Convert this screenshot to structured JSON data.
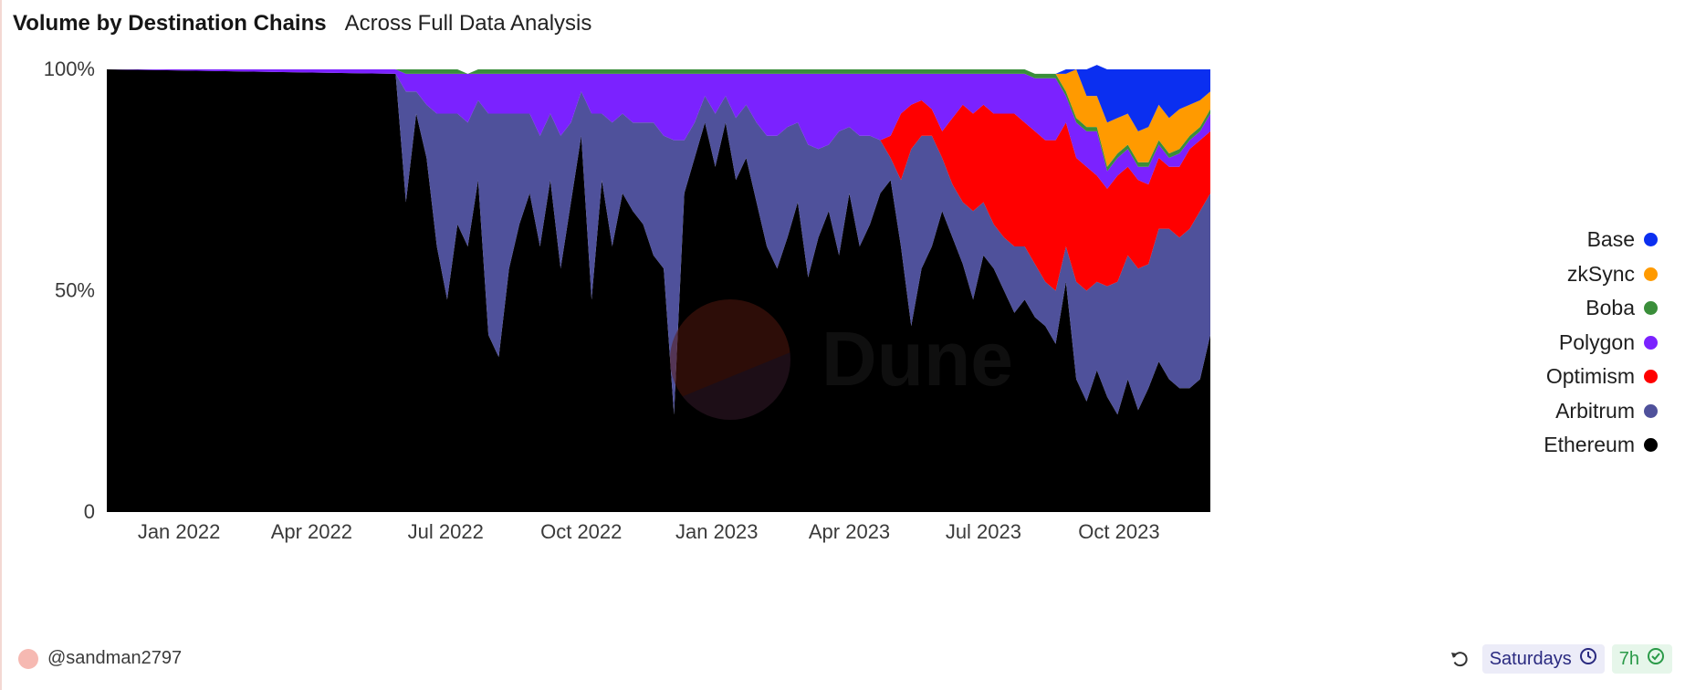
{
  "header": {
    "title": "Volume by Destination Chains",
    "subtitle": "Across Full Data Analysis"
  },
  "chart_data": {
    "type": "area",
    "stacked": true,
    "normalized": true,
    "x_start": "2021-11-13",
    "x_end": "2023-12-02",
    "xticks": [
      "2022-01-01",
      "2022-04-01",
      "2022-07-01",
      "2022-10-01",
      "2023-01-01",
      "2023-04-01",
      "2023-07-01",
      "2023-10-01"
    ],
    "xtick_labels": [
      "Jan 2022",
      "Apr 2022",
      "Jul 2022",
      "Oct 2022",
      "Jan 2023",
      "Apr 2023",
      "Jul 2023",
      "Oct 2023"
    ],
    "yticks": [
      0,
      50,
      100
    ],
    "ytick_labels": [
      "0",
      "50%",
      "100%"
    ],
    "ylim": [
      0,
      100
    ],
    "legend_position": "right",
    "x": [
      "2021-11-13",
      "2022-05-28",
      "2022-06-04",
      "2022-06-11",
      "2022-06-18",
      "2022-06-25",
      "2022-07-02",
      "2022-07-09",
      "2022-07-16",
      "2022-07-23",
      "2022-07-30",
      "2022-08-06",
      "2022-08-13",
      "2022-08-20",
      "2022-08-27",
      "2022-09-03",
      "2022-09-10",
      "2022-09-17",
      "2022-09-24",
      "2022-10-01",
      "2022-10-08",
      "2022-10-15",
      "2022-10-22",
      "2022-10-29",
      "2022-11-05",
      "2022-11-12",
      "2022-11-19",
      "2022-11-26",
      "2022-12-03",
      "2022-12-10",
      "2022-12-17",
      "2022-12-24",
      "2022-12-31",
      "2023-01-07",
      "2023-01-14",
      "2023-01-21",
      "2023-01-28",
      "2023-02-04",
      "2023-02-11",
      "2023-02-18",
      "2023-02-25",
      "2023-03-04",
      "2023-03-11",
      "2023-03-18",
      "2023-03-25",
      "2023-04-01",
      "2023-04-08",
      "2023-04-15",
      "2023-04-22",
      "2023-04-29",
      "2023-05-06",
      "2023-05-13",
      "2023-05-20",
      "2023-05-27",
      "2023-06-03",
      "2023-06-10",
      "2023-06-17",
      "2023-06-24",
      "2023-07-01",
      "2023-07-08",
      "2023-07-15",
      "2023-07-22",
      "2023-07-29",
      "2023-08-05",
      "2023-08-12",
      "2023-08-19",
      "2023-08-26",
      "2023-09-02",
      "2023-09-09",
      "2023-09-16",
      "2023-09-23",
      "2023-09-30",
      "2023-10-07",
      "2023-10-14",
      "2023-10-21",
      "2023-10-28",
      "2023-11-04",
      "2023-11-11",
      "2023-11-18",
      "2023-11-25",
      "2023-12-02"
    ],
    "series": [
      {
        "name": "Ethereum",
        "color": "#000000",
        "values": [
          100,
          99,
          70,
          90,
          80,
          60,
          48,
          65,
          60,
          75,
          40,
          35,
          55,
          65,
          72,
          60,
          75,
          55,
          70,
          85,
          48,
          75,
          60,
          72,
          68,
          65,
          58,
          55,
          22,
          72,
          80,
          88,
          78,
          88,
          75,
          80,
          70,
          60,
          55,
          62,
          70,
          53,
          62,
          68,
          58,
          72,
          60,
          65,
          72,
          75,
          60,
          42,
          55,
          60,
          68,
          62,
          56,
          48,
          58,
          55,
          50,
          45,
          48,
          44,
          42,
          38,
          52,
          30,
          25,
          32,
          26,
          22,
          30,
          23,
          28,
          34,
          30,
          28,
          28,
          30,
          40
        ]
      },
      {
        "name": "Arbitrum",
        "color": "#4f519b",
        "values": [
          0,
          0,
          25,
          5,
          12,
          30,
          42,
          25,
          28,
          18,
          50,
          55,
          35,
          25,
          18,
          25,
          15,
          30,
          18,
          10,
          42,
          15,
          28,
          18,
          20,
          23,
          30,
          30,
          62,
          12,
          8,
          6,
          12,
          6,
          14,
          12,
          18,
          25,
          30,
          25,
          18,
          30,
          20,
          15,
          28,
          15,
          25,
          20,
          12,
          5,
          15,
          40,
          30,
          25,
          12,
          12,
          14,
          20,
          12,
          10,
          12,
          15,
          12,
          12,
          10,
          12,
          8,
          22,
          25,
          20,
          25,
          30,
          28,
          32,
          28,
          30,
          34,
          34,
          36,
          38,
          32
        ]
      },
      {
        "name": "Optimism",
        "color": "#ff0000",
        "values": [
          0,
          0,
          0,
          0,
          0,
          0,
          0,
          0,
          0,
          0,
          0,
          0,
          0,
          0,
          0,
          0,
          0,
          0,
          0,
          0,
          0,
          0,
          0,
          0,
          0,
          0,
          0,
          0,
          0,
          0,
          0,
          0,
          0,
          0,
          0,
          0,
          0,
          0,
          0,
          0,
          0,
          0,
          0,
          0,
          0,
          0,
          0,
          0,
          0,
          5,
          15,
          10,
          8,
          6,
          6,
          15,
          22,
          22,
          22,
          25,
          28,
          30,
          28,
          30,
          32,
          34,
          28,
          28,
          28,
          24,
          22,
          24,
          20,
          20,
          18,
          16,
          14,
          16,
          18,
          16,
          14
        ]
      },
      {
        "name": "Polygon",
        "color": "#7b22ff",
        "values": [
          0,
          1,
          4,
          4,
          7,
          9,
          9,
          9,
          11,
          6,
          9,
          9,
          9,
          9,
          9,
          14,
          9,
          14,
          11,
          4,
          9,
          9,
          11,
          9,
          11,
          11,
          11,
          14,
          15,
          15,
          11,
          5,
          9,
          5,
          10,
          7,
          11,
          14,
          14,
          12,
          11,
          16,
          17,
          16,
          13,
          12,
          14,
          14,
          15,
          14,
          9,
          7,
          6,
          8,
          13,
          10,
          7,
          9,
          7,
          9,
          9,
          9,
          11,
          12,
          14,
          14,
          6,
          8,
          8,
          10,
          4,
          4,
          4,
          3,
          4,
          3,
          2,
          3,
          2,
          2,
          4
        ]
      },
      {
        "name": "Boba",
        "color": "#3a8e3a",
        "values": [
          0,
          0,
          1,
          1,
          1,
          1,
          1,
          1,
          0,
          1,
          1,
          1,
          1,
          1,
          1,
          1,
          1,
          1,
          1,
          1,
          1,
          1,
          1,
          1,
          1,
          1,
          1,
          1,
          1,
          1,
          1,
          1,
          1,
          1,
          1,
          1,
          1,
          1,
          1,
          1,
          1,
          1,
          1,
          1,
          1,
          1,
          1,
          1,
          1,
          1,
          1,
          1,
          1,
          1,
          1,
          1,
          1,
          1,
          1,
          1,
          1,
          1,
          1,
          1,
          1,
          1,
          1,
          1,
          1,
          1,
          1,
          1,
          1,
          1,
          1,
          1,
          1,
          1,
          1,
          1,
          1
        ]
      },
      {
        "name": "zkSync",
        "color": "#ff9a00",
        "values": [
          0,
          0,
          0,
          0,
          0,
          0,
          0,
          0,
          0,
          0,
          0,
          0,
          0,
          0,
          0,
          0,
          0,
          0,
          0,
          0,
          0,
          0,
          0,
          0,
          0,
          0,
          0,
          0,
          0,
          0,
          0,
          0,
          0,
          0,
          0,
          0,
          0,
          0,
          0,
          0,
          0,
          0,
          0,
          0,
          0,
          0,
          0,
          0,
          0,
          0,
          0,
          0,
          0,
          0,
          0,
          0,
          0,
          0,
          0,
          0,
          0,
          0,
          0,
          0,
          0,
          0,
          4,
          11,
          7,
          7,
          10,
          8,
          7,
          7,
          8,
          8,
          8,
          9,
          7,
          6,
          4
        ]
      },
      {
        "name": "Base",
        "color": "#0b2ff0",
        "values": [
          0,
          0,
          0,
          0,
          0,
          0,
          0,
          0,
          0,
          0,
          0,
          0,
          0,
          0,
          0,
          0,
          0,
          0,
          0,
          0,
          0,
          0,
          0,
          0,
          0,
          0,
          0,
          0,
          0,
          0,
          0,
          0,
          0,
          0,
          0,
          0,
          0,
          0,
          0,
          0,
          0,
          0,
          0,
          0,
          0,
          0,
          0,
          0,
          0,
          0,
          0,
          0,
          0,
          0,
          0,
          0,
          0,
          0,
          0,
          0,
          0,
          0,
          0,
          0,
          0,
          0,
          1,
          0,
          6,
          7,
          12,
          11,
          10,
          14,
          13,
          8,
          11,
          9,
          8,
          7,
          5
        ]
      }
    ]
  },
  "legend": [
    {
      "label": "Base",
      "color": "#0b2ff0"
    },
    {
      "label": "zkSync",
      "color": "#ff9a00"
    },
    {
      "label": "Boba",
      "color": "#3a8e3a"
    },
    {
      "label": "Polygon",
      "color": "#7b22ff"
    },
    {
      "label": "Optimism",
      "color": "#ff0000"
    },
    {
      "label": "Arbitrum",
      "color": "#4f519b"
    },
    {
      "label": "Ethereum",
      "color": "#000000"
    }
  ],
  "watermark": {
    "text": "Dune"
  },
  "footer": {
    "author": "@sandman2797",
    "schedule": "Saturdays",
    "freshness": "7h",
    "icons": {
      "refresh": "refresh-icon",
      "clock": "clock-icon",
      "check": "check-circle-icon"
    }
  }
}
